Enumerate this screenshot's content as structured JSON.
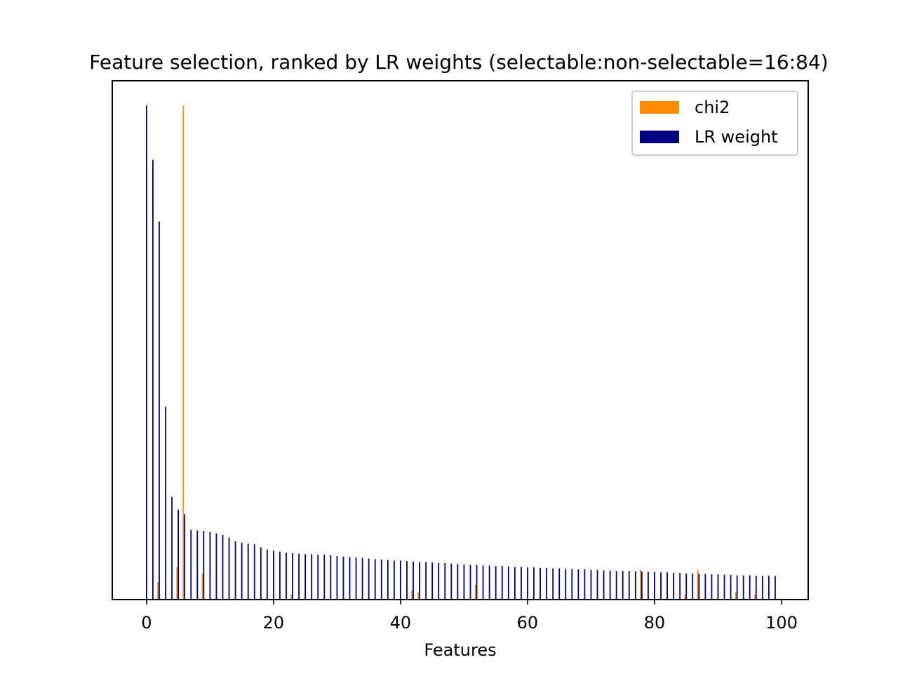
{
  "chart_data": {
    "type": "bar",
    "title": "Feature selection, ranked by LR weights (selectable:non-selectable=16:84)",
    "xlabel": "Features",
    "ylabel": "",
    "xlim": [
      -5.4,
      104.2
    ],
    "ylim": [
      0,
      1.05
    ],
    "xticks": [
      "0",
      "20",
      "40",
      "60",
      "80",
      "100"
    ],
    "yticks_visible": false,
    "grid": false,
    "legend_position": "top-right",
    "colors": {
      "chi2": "#ff8c00",
      "lr": "#000080"
    },
    "x": [
      0,
      1,
      2,
      3,
      4,
      5,
      6,
      7,
      8,
      9,
      10,
      11,
      12,
      13,
      14,
      15,
      16,
      17,
      18,
      19,
      20,
      21,
      22,
      23,
      24,
      25,
      26,
      27,
      28,
      29,
      30,
      31,
      32,
      33,
      34,
      35,
      36,
      37,
      38,
      39,
      40,
      41,
      42,
      43,
      44,
      45,
      46,
      47,
      48,
      49,
      50,
      51,
      52,
      53,
      54,
      55,
      56,
      57,
      58,
      59,
      60,
      61,
      62,
      63,
      64,
      65,
      66,
      67,
      68,
      69,
      70,
      71,
      72,
      73,
      74,
      75,
      76,
      77,
      78,
      79,
      80,
      81,
      82,
      83,
      84,
      85,
      86,
      87,
      88,
      89,
      90,
      91,
      92,
      93,
      94,
      95,
      96,
      97,
      98,
      99
    ],
    "series": [
      {
        "name": "chi2",
        "values": [
          0,
          0,
          0.035,
          0,
          0,
          0.065,
          1.0,
          0,
          0,
          0.052,
          0,
          0,
          0,
          0,
          0,
          0,
          0,
          0,
          0,
          0,
          0,
          0,
          0,
          0.01,
          0,
          0,
          0,
          0,
          0,
          0,
          0,
          0,
          0,
          0,
          0,
          0,
          0,
          0,
          0,
          0,
          0,
          0,
          0.018,
          0.015,
          0,
          0,
          0,
          0,
          0,
          0,
          0,
          0,
          0.03,
          0,
          0,
          0,
          0,
          0,
          0,
          0,
          0,
          0,
          0,
          0,
          0,
          0,
          0,
          0,
          0,
          0,
          0,
          0,
          0,
          0,
          0,
          0,
          0,
          0,
          0.06,
          0,
          0,
          0,
          0,
          0,
          0,
          0.01,
          0,
          0.06,
          0,
          0,
          0,
          0,
          0,
          0.015,
          0,
          0,
          0.01,
          0,
          0,
          0
        ]
      },
      {
        "name": "LR weight",
        "values": [
          1.0,
          0.89,
          0.765,
          0.39,
          0.208,
          0.182,
          0.173,
          0.141,
          0.14,
          0.139,
          0.137,
          0.134,
          0.131,
          0.126,
          0.118,
          0.115,
          0.113,
          0.112,
          0.106,
          0.101,
          0.099,
          0.097,
          0.095,
          0.094,
          0.093,
          0.092,
          0.092,
          0.091,
          0.091,
          0.09,
          0.088,
          0.087,
          0.086,
          0.085,
          0.084,
          0.083,
          0.082,
          0.081,
          0.08,
          0.079,
          0.079,
          0.078,
          0.077,
          0.076,
          0.076,
          0.075,
          0.074,
          0.074,
          0.073,
          0.072,
          0.071,
          0.07,
          0.07,
          0.069,
          0.069,
          0.068,
          0.068,
          0.067,
          0.066,
          0.066,
          0.065,
          0.065,
          0.064,
          0.064,
          0.063,
          0.063,
          0.062,
          0.062,
          0.061,
          0.061,
          0.06,
          0.06,
          0.059,
          0.059,
          0.058,
          0.058,
          0.058,
          0.057,
          0.057,
          0.056,
          0.056,
          0.055,
          0.055,
          0.054,
          0.054,
          0.053,
          0.053,
          0.052,
          0.052,
          0.051,
          0.051,
          0.05,
          0.05,
          0.049,
          0.049,
          0.049,
          0.048,
          0.048,
          0.048,
          0.048
        ]
      }
    ]
  }
}
